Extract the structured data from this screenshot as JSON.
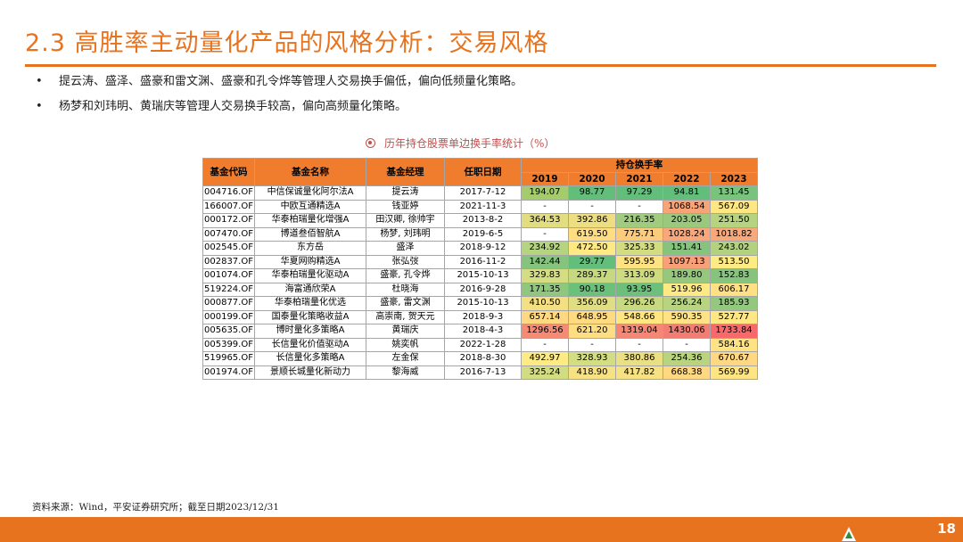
{
  "title": "2.3 高胜率主动量化产品的风格分析：交易风格",
  "bullets": [
    "提云涛、盛泽、盛豪和雷文渊、盛豪和孔令烨等管理人交易换手偏低，偏向低频量化策略。",
    "杨梦和刘玮明、黄瑞庆等管理人交易换手较高，偏向高频量化策略。"
  ],
  "bullet_symbol": "•",
  "caption": "历年持仓股票单边换手率统计（%）",
  "table": {
    "headers": {
      "code": "基金代码",
      "name": "基金名称",
      "manager": "基金经理",
      "date": "任职日期",
      "turnover": "持仓换手率"
    },
    "years": [
      "2019",
      "2020",
      "2021",
      "2022",
      "2023"
    ],
    "rows": [
      {
        "code": "004716.OF",
        "name": "中信保诚量化阿尔法A",
        "manager": "提云涛",
        "date": "2017-7-12",
        "values": [
          "194.07",
          "98.77",
          "97.29",
          "94.81",
          "131.45"
        ],
        "colors": [
          "#a5cc6c",
          "#63be7b",
          "#63be7b",
          "#63be7b",
          "#78c47c"
        ]
      },
      {
        "code": "166007.OF",
        "name": "中欧互通精选A",
        "manager": "钱亚婷",
        "date": "2021-11-3",
        "values": [
          "-",
          "-",
          "-",
          "1068.54",
          "567.09"
        ],
        "colors": [
          "#ffffff",
          "#ffffff",
          "#ffffff",
          "#f8a479",
          "#fee782"
        ]
      },
      {
        "code": "000172.OF",
        "name": "华泰柏瑞量化增强A",
        "manager": "田汉卿, 徐帅宇",
        "date": "2013-8-2",
        "values": [
          "364.53",
          "392.86",
          "216.35",
          "203.05",
          "251.50"
        ],
        "colors": [
          "#e2dd81",
          "#edde82",
          "#a0cc7f",
          "#9ac97e",
          "#b6d47f"
        ]
      },
      {
        "code": "007470.OF",
        "name": "博道叁佰智航A",
        "manager": "杨梦, 刘玮明",
        "date": "2019-6-5",
        "values": [
          "-",
          "619.50",
          "775.71",
          "1028.24",
          "1018.82"
        ],
        "colors": [
          "#ffffff",
          "#ffde82",
          "#fdcb7c",
          "#f9a77a",
          "#f9a87a"
        ]
      },
      {
        "code": "002545.OF",
        "name": "东方岳",
        "manager": "盛泽",
        "date": "2018-9-12",
        "values": [
          "234.92",
          "472.50",
          "325.33",
          "151.41",
          "243.02"
        ],
        "colors": [
          "#b5d47f",
          "#fee983",
          "#d2dd82",
          "#86c47d",
          "#b2d27f"
        ]
      },
      {
        "code": "002837.OF",
        "name": "华夏网购精选A",
        "manager": "张弘弢",
        "date": "2016-11-2",
        "values": [
          "142.44",
          "29.77",
          "595.95",
          "1097.13",
          "513.50"
        ],
        "colors": [
          "#84c47d",
          "#63be7b",
          "#ffe383",
          "#f8a078",
          "#ffeb84"
        ]
      },
      {
        "code": "001074.OF",
        "name": "华泰柏瑞量化驱动A",
        "manager": "盛豪, 孔令烨",
        "date": "2015-10-13",
        "values": [
          "329.83",
          "289.37",
          "313.09",
          "189.80",
          "152.83"
        ],
        "colors": [
          "#d4dd82",
          "#c6d981",
          "#cfdb81",
          "#95c87e",
          "#86c47d"
        ]
      },
      {
        "code": "519224.OF",
        "name": "海富通欣荣A",
        "manager": "杜晓海",
        "date": "2016-9-28",
        "values": [
          "171.35",
          "90.18",
          "93.95",
          "519.96",
          "606.17"
        ],
        "colors": [
          "#8fc77e",
          "#6bc07b",
          "#6dc07c",
          "#ffe983",
          "#ffe082"
        ]
      },
      {
        "code": "000877.OF",
        "name": "华泰柏瑞量化优选",
        "manager": "盛豪, 雷文渊",
        "date": "2015-10-13",
        "values": [
          "410.50",
          "356.09",
          "296.26",
          "256.24",
          "185.93"
        ],
        "colors": [
          "#f2e083",
          "#e0dd82",
          "#c8da81",
          "#b8d480",
          "#93c87e"
        ]
      },
      {
        "code": "000199.OF",
        "name": "国泰量化策略收益A",
        "manager": "高崇南, 贺天元",
        "date": "2018-9-3",
        "values": [
          "657.14",
          "648.95",
          "548.66",
          "590.35",
          "527.77"
        ],
        "colors": [
          "#ffd981",
          "#ffda81",
          "#ffe683",
          "#ffe283",
          "#ffe883"
        ]
      },
      {
        "code": "005635.OF",
        "name": "博时量化多策略A",
        "manager": "黄瑞庆",
        "date": "2018-4-3",
        "values": [
          "1296.56",
          "621.20",
          "1319.04",
          "1430.06",
          "1733.84"
        ],
        "colors": [
          "#f58a75",
          "#ffdd82",
          "#f48875",
          "#f27d72",
          "#f8696b"
        ]
      },
      {
        "code": "005399.OF",
        "name": "长信量化价值驱动A",
        "manager": "姚奕帆",
        "date": "2022-1-28",
        "values": [
          "-",
          "-",
          "-",
          "-",
          "584.16"
        ],
        "colors": [
          "#ffffff",
          "#ffffff",
          "#ffffff",
          "#ffffff",
          "#ffe383"
        ]
      },
      {
        "code": "519965.OF",
        "name": "长信量化多策略A",
        "manager": "左金保",
        "date": "2018-8-30",
        "values": [
          "492.97",
          "328.93",
          "380.86",
          "254.36",
          "670.67"
        ],
        "colors": [
          "#ffeb84",
          "#d3dd82",
          "#ebdf83",
          "#b8d47f",
          "#ffd881"
        ]
      },
      {
        "code": "001974.OF",
        "name": "景顺长城量化新动力",
        "manager": "黎海威",
        "date": "2016-7-13",
        "values": [
          "325.24",
          "418.90",
          "417.82",
          "668.38",
          "569.99"
        ],
        "colors": [
          "#d2dd82",
          "#f6e183",
          "#f6e183",
          "#ffd881",
          "#ffe483"
        ]
      }
    ]
  },
  "footnote": "资料来源：Wind，平安证券研究所；截至日期2023/12/31",
  "page_number": "18",
  "accent_color": "#e8731f",
  "header_color": "#ef7d2d"
}
